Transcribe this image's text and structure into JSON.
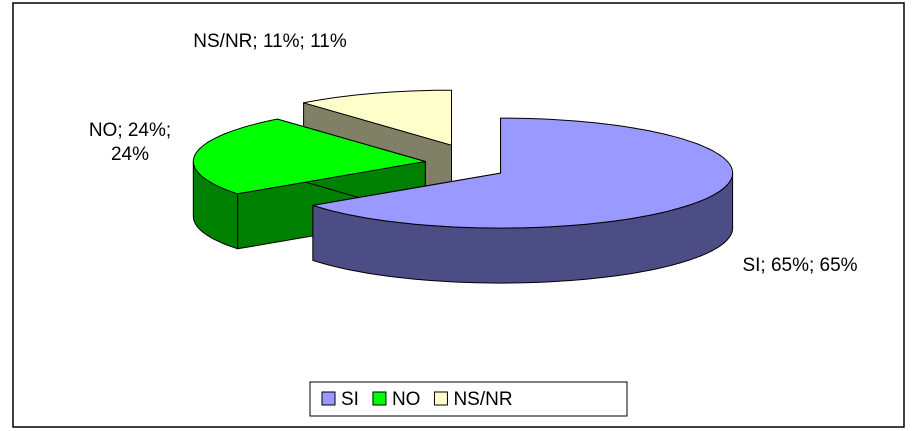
{
  "chart_data": {
    "type": "pie3d",
    "categories": [
      "SI",
      "NO",
      "NS/NR"
    ],
    "values": [
      65,
      24,
      11
    ],
    "value_labels": [
      "SI; 65%; 65%",
      "NO; 24%; 24%",
      "NS/NR; 11%; 11%"
    ],
    "colors": [
      "#9999ff",
      "#00ff00",
      "#ffffcc"
    ],
    "side_colors": [
      "#4d4d86",
      "#008000",
      "#808066"
    ],
    "legend": "bottom"
  }
}
